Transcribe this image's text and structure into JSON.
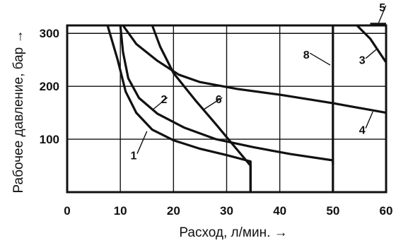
{
  "chart_data": {
    "type": "line",
    "xlabel": "Расход, л/мин. →",
    "ylabel": "Рабочее давление, бар →",
    "xlim": [
      0,
      60
    ],
    "ylim": [
      0,
      315
    ],
    "grid": true,
    "x_ticks": [
      0,
      10,
      20,
      30,
      40,
      50,
      60
    ],
    "x_tick_labels": [
      "0",
      "10",
      "20",
      "30",
      "40",
      "50",
      "60"
    ],
    "y_ticks": [
      100,
      200,
      300
    ],
    "y_tick_labels": [
      "100",
      "200",
      "300"
    ],
    "extra_hline": 315,
    "series": [
      {
        "name": "1",
        "points": [
          [
            7.6,
            315
          ],
          [
            9.5,
            250
          ],
          [
            11,
            190
          ],
          [
            13,
            150
          ],
          [
            16,
            118
          ],
          [
            20,
            98
          ],
          [
            25,
            82
          ],
          [
            30,
            70
          ],
          [
            34.5,
            58
          ],
          [
            34.5,
            0
          ]
        ]
      },
      {
        "name": "2",
        "points": [
          [
            10,
            315
          ],
          [
            10.5,
            265
          ],
          [
            11.5,
            215
          ],
          [
            13.5,
            178
          ],
          [
            17,
            148
          ],
          [
            22,
            122
          ],
          [
            28,
            100
          ],
          [
            35,
            85
          ],
          [
            42,
            72
          ],
          [
            50,
            60
          ],
          [
            50,
            52
          ]
        ]
      },
      {
        "name": "3",
        "points": [
          [
            54.5,
            315
          ],
          [
            57,
            290
          ],
          [
            60,
            245
          ]
        ]
      },
      {
        "name": "4",
        "points": [
          [
            10.5,
            315
          ],
          [
            13,
            280
          ],
          [
            17,
            248
          ],
          [
            21,
            222
          ],
          [
            25,
            208
          ],
          [
            32,
            195
          ],
          [
            40,
            184
          ],
          [
            50,
            168
          ],
          [
            60,
            150
          ]
        ]
      },
      {
        "name": "5",
        "points": [
          [
            57,
            318
          ],
          [
            60,
            318
          ]
        ]
      },
      {
        "name": "6",
        "points": [
          [
            16,
            315
          ],
          [
            17.5,
            275
          ],
          [
            20,
            225
          ],
          [
            24,
            175
          ],
          [
            28,
            128
          ],
          [
            31,
            92
          ],
          [
            34.5,
            50
          ],
          [
            34.5,
            0
          ]
        ]
      },
      {
        "name": "8",
        "points": [
          [
            50,
            315
          ],
          [
            50,
            0
          ]
        ]
      }
    ],
    "labels": [
      {
        "text": "1",
        "x": 12.5,
        "y": 62,
        "anchor_x": 15,
        "anchor_y": 115
      },
      {
        "text": "2",
        "x": 18.2,
        "y": 168,
        "anchor_x": 16,
        "anchor_y": 155
      },
      {
        "text": "3",
        "x": 55.5,
        "y": 242,
        "anchor_x": 58.2,
        "anchor_y": 270
      },
      {
        "text": "4",
        "x": 55.5,
        "y": 110,
        "anchor_x": 57.5,
        "anchor_y": 152
      },
      {
        "text": "5",
        "x": 59.3,
        "y": 342,
        "anchor_x": 58.6,
        "anchor_y": 320
      },
      {
        "text": "6",
        "x": 28.5,
        "y": 168,
        "anchor_x": 25.5,
        "anchor_y": 155
      },
      {
        "text": "8",
        "x": 45,
        "y": 252,
        "anchor_x": 49.5,
        "anchor_y": 240
      }
    ]
  }
}
